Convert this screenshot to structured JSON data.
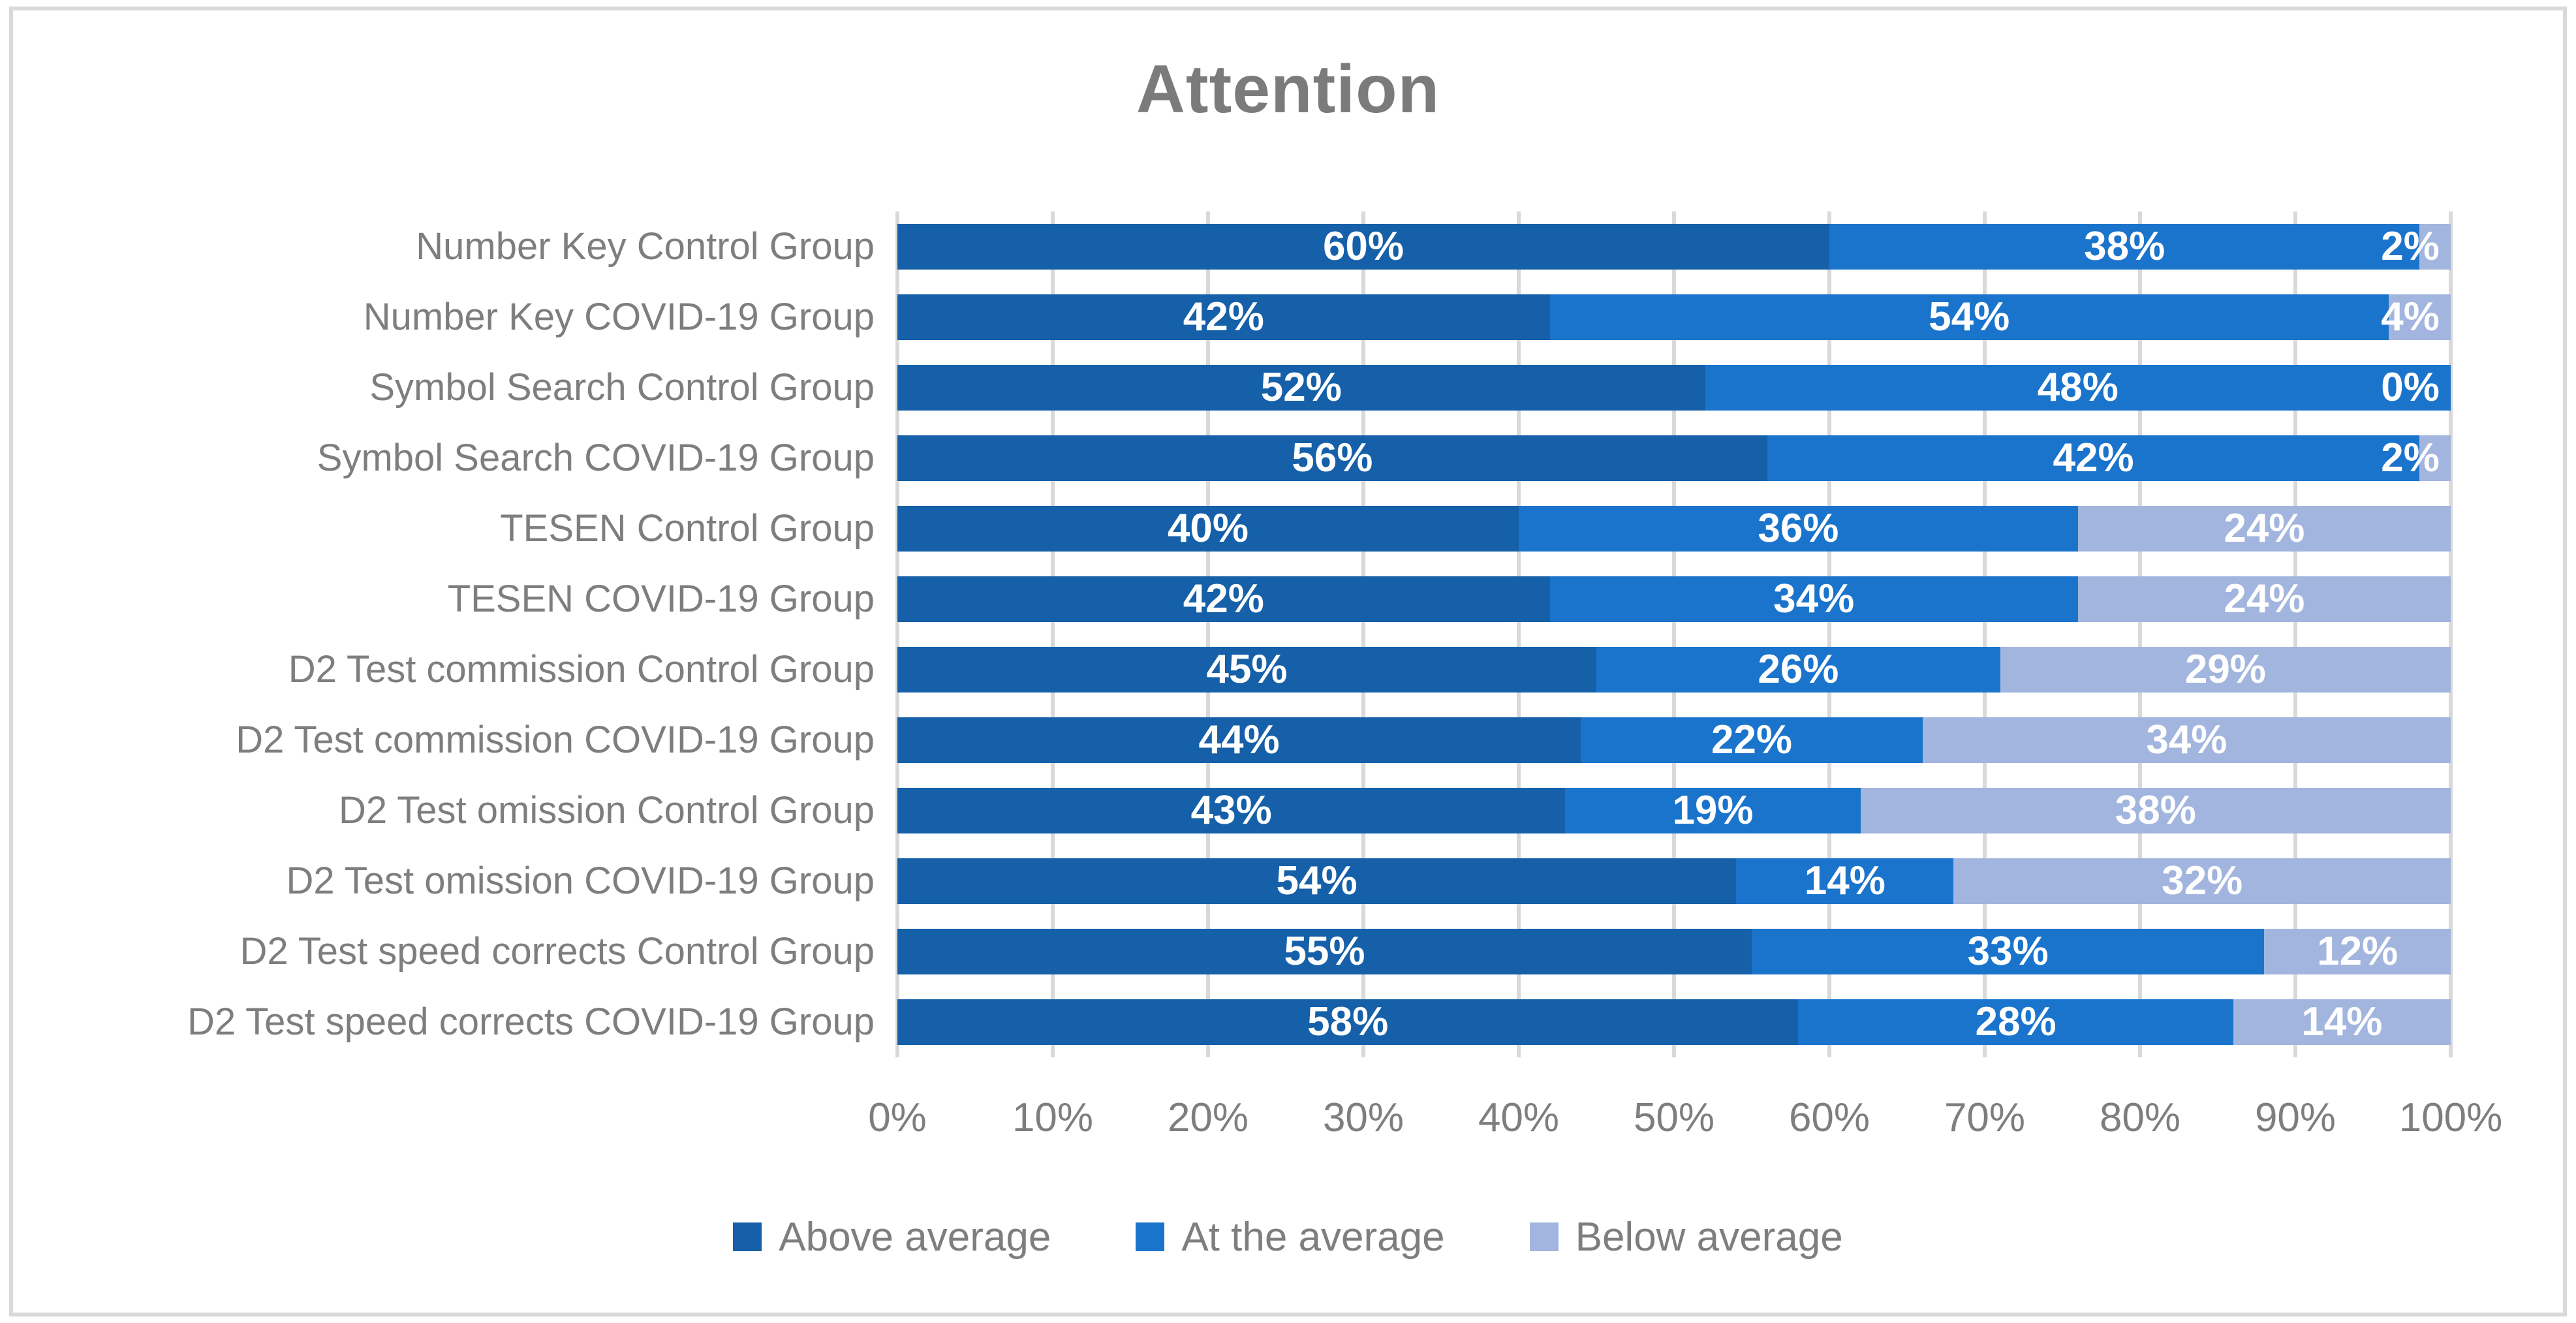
{
  "title": "Attention",
  "colors": {
    "above_average": "#1560A8",
    "at_the_average": "#1B74CC",
    "below_average": "#A2B5DE",
    "gridline": "#D9D9D9",
    "border": "#D9D9D9",
    "axis_text": "#7E7E7E",
    "title_text": "#7B7B7B",
    "data_label_text": "#FFFFFF"
  },
  "legend": {
    "items": [
      {
        "label": "Above average",
        "color": "#1560A8"
      },
      {
        "label": "At the average",
        "color": "#1B74CC"
      },
      {
        "label": "Below average",
        "color": "#A2B5DE"
      }
    ]
  },
  "x_axis": {
    "ticks": [
      "0%",
      "10%",
      "20%",
      "30%",
      "40%",
      "50%",
      "60%",
      "70%",
      "80%",
      "90%",
      "100%"
    ]
  },
  "chart_data": {
    "type": "bar",
    "orientation": "horizontal",
    "stacked": true,
    "title": "Attention",
    "xlabel": "",
    "ylabel": "",
    "xlim": [
      0,
      100
    ],
    "value_suffix": "%",
    "grid": true,
    "legend_position": "bottom",
    "categories": [
      "Number Key Control Group",
      "Number Key COVID-19 Group",
      "Symbol Search Control Group",
      "Symbol Search COVID-19 Group",
      "TESEN Control Group",
      "TESEN COVID-19 Group",
      "D2 Test commission Control Group",
      "D2 Test commission COVID-19 Group",
      "D2 Test omission Control Group",
      "D2 Test omission COVID-19 Group",
      "D2 Test speed  corrects Control Group",
      "D2 Test speed  corrects COVID-19 Group"
    ],
    "series": [
      {
        "name": "Above average",
        "color": "#1560A8",
        "values": [
          60,
          42,
          52,
          56,
          40,
          42,
          45,
          44,
          43,
          54,
          55,
          58
        ]
      },
      {
        "name": "At the average",
        "color": "#1B74CC",
        "values": [
          38,
          54,
          48,
          42,
          36,
          34,
          26,
          22,
          19,
          14,
          33,
          28
        ]
      },
      {
        "name": "Below average",
        "color": "#A2B5DE",
        "values": [
          2,
          4,
          0,
          2,
          24,
          24,
          29,
          34,
          38,
          32,
          12,
          14
        ]
      }
    ],
    "data_labels": [
      [
        "60%",
        "38%",
        "2%"
      ],
      [
        "42%",
        "54%",
        "4%"
      ],
      [
        "52%",
        "48%",
        "0%"
      ],
      [
        "56%",
        "42%",
        "2%"
      ],
      [
        "40%",
        "36%",
        "24%"
      ],
      [
        "42%",
        "34%",
        "24%"
      ],
      [
        "45%",
        "26%",
        "29%"
      ],
      [
        "44%",
        "22%",
        "34%"
      ],
      [
        "43%",
        "19%",
        "38%"
      ],
      [
        "54%",
        "14%",
        "32%"
      ],
      [
        "55%",
        "33%",
        "12%"
      ],
      [
        "58%",
        "28%",
        "14%"
      ]
    ]
  }
}
